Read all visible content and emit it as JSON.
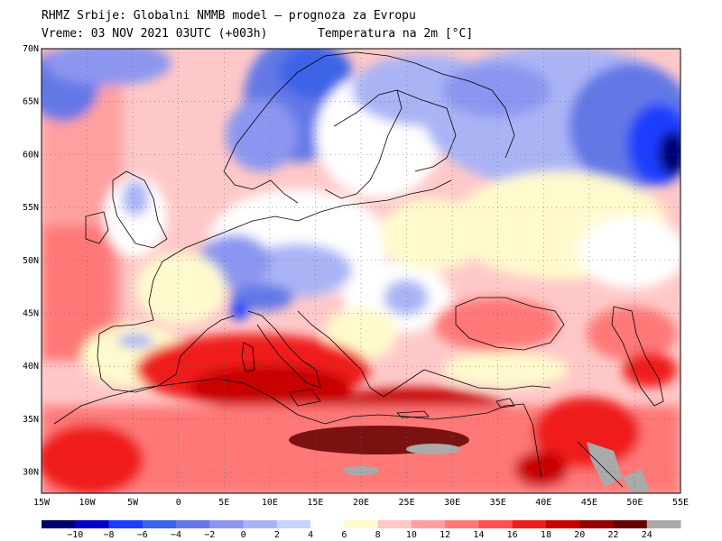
{
  "header": {
    "line1": "RHMZ Srbije: Globalni NMMB model — prognoza za Evropu",
    "line2_left": "Vreme: 03 NOV 2021 03UTC (+003h)",
    "line2_right": "Temperatura na 2m [°C]"
  },
  "map": {
    "lon_range": [
      -15,
      55
    ],
    "lat_range": [
      28,
      70
    ],
    "lat_labels": [
      "70N",
      "65N",
      "60N",
      "55N",
      "50N",
      "45N",
      "40N",
      "35N",
      "30N"
    ],
    "lat_values": [
      70,
      65,
      60,
      55,
      50,
      45,
      40,
      35,
      30
    ],
    "lon_labels": [
      "15W",
      "10W",
      "5W",
      "0",
      "5E",
      "10E",
      "15E",
      "20E",
      "25E",
      "30E",
      "35E",
      "40E",
      "45E",
      "50E",
      "55E"
    ],
    "lon_values": [
      -15,
      -10,
      -5,
      0,
      5,
      10,
      15,
      20,
      25,
      30,
      35,
      40,
      45,
      50,
      55
    ],
    "grid": "dotted"
  },
  "legend": {
    "labels": [
      "−10",
      "−8",
      "−6",
      "−4",
      "−2",
      "0",
      "2",
      "4",
      "6",
      "8",
      "10",
      "12",
      "14",
      "16",
      "18",
      "20",
      "22",
      "24"
    ],
    "colors": [
      "#00006e",
      "#0000c8",
      "#1e3cff",
      "#3c64e6",
      "#6478e6",
      "#8c96f0",
      "#aab4f5",
      "#c8d2ff",
      "#ffffff",
      "#fffacd",
      "#ffc8c8",
      "#ffa0a0",
      "#ff7878",
      "#ff5050",
      "#f01e1e",
      "#c80000",
      "#960000",
      "#640000",
      "#aaaaaa"
    ]
  }
}
